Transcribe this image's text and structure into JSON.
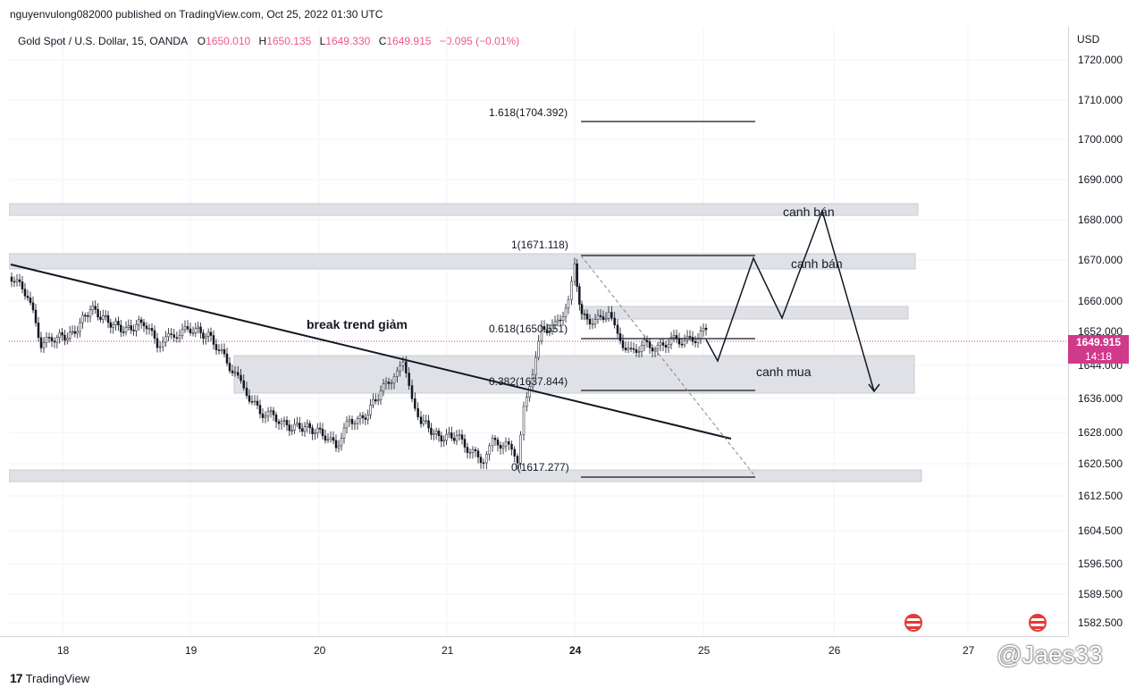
{
  "header": {
    "published_line": "nguyenvulong082000 published on TradingView.com, Oct 25, 2022 01:30 UTC",
    "symbol": "Gold Spot / U.S. Dollar, 15, OANDA",
    "open_label": "O",
    "open_value": "1650.010",
    "high_label": "H",
    "high_value": "1650.135",
    "low_label": "L",
    "low_value": "1649.330",
    "close_label": "C",
    "close_value": "1649.915",
    "change": "−0.095 (−0.01%)"
  },
  "price_axis": {
    "unit": "USD",
    "ticks": [
      "1720.000",
      "1710.000",
      "1700.000",
      "1690.000",
      "1680.000",
      "1670.000",
      "1660.000",
      "1652.000",
      "1644.000",
      "1636.000",
      "1628.000",
      "1620.500",
      "1612.500",
      "1604.500",
      "1596.500",
      "1589.500",
      "1582.500"
    ],
    "last_price": "1649.915",
    "countdown": "14:18"
  },
  "time_axis": {
    "ticks": [
      "18",
      "19",
      "20",
      "21",
      "24",
      "25",
      "26",
      "27"
    ]
  },
  "fib_levels": [
    {
      "label": "1.618(1704.392)"
    },
    {
      "label": "1(1671.118)"
    },
    {
      "label": "0.618(1650.551)"
    },
    {
      "label": "0.382(1637.844)"
    },
    {
      "label": "0(1617.277)"
    }
  ],
  "annotations": {
    "break_trend": "break trend giảm",
    "canh_ban_1": "canh bán",
    "canh_ban_2": "canh bán",
    "canh_mua": "canh mua"
  },
  "footer": {
    "brand": "TradingView",
    "watermark": "@Jaes33"
  },
  "colors": {
    "down": "#e91e63",
    "zone": "#e0e1e6",
    "last_price_bg": "#d03a8a"
  }
}
